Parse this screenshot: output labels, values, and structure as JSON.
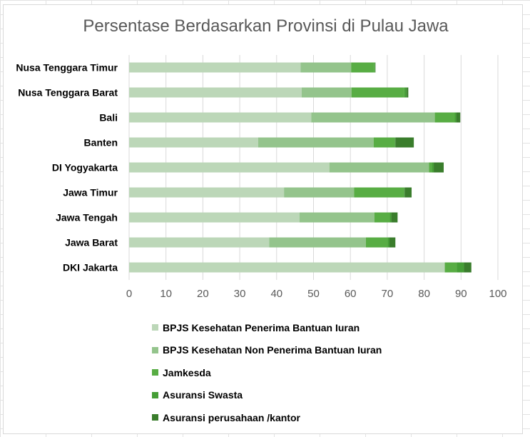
{
  "chart_data": {
    "type": "bar",
    "orientation": "horizontal",
    "stacked": true,
    "title": "Persentase Berdasarkan Provinsi di Pulau Jawa",
    "categories": [
      "Nusa Tenggara Timur",
      "Nusa Tenggara Barat",
      "Bali",
      "Banten",
      "DI Yogyakarta",
      "Jawa Timur",
      "Jawa Tengah",
      "Jawa Barat",
      "DKI Jakarta"
    ],
    "series": [
      {
        "name": "BPJS Kesehatan Penerima Bantuan Iuran",
        "color": "#bcd7b8",
        "values": [
          46.5,
          46.8,
          49.4,
          35.0,
          54.3,
          42.0,
          46.2,
          38.0,
          85.6
        ]
      },
      {
        "name": "BPJS Kesehatan Non Penerima Bantuan Iuran",
        "color": "#94c48c",
        "values": [
          13.7,
          13.5,
          33.5,
          31.3,
          27.0,
          19.0,
          20.3,
          26.2,
          0
        ]
      },
      {
        "name": "Jamkesda",
        "color": "#58ad44",
        "values": [
          6.3,
          14.3,
          5.4,
          5.7,
          0.8,
          13.5,
          4.2,
          5.9,
          3.2
        ]
      },
      {
        "name": "Asuransi Swasta",
        "color": "#459e36",
        "values": [
          0.2,
          0.6,
          0.4,
          0.2,
          0.5,
          0.2,
          0.4,
          0.5,
          2.0
        ]
      },
      {
        "name": "Asuransi perusahaan /kantor",
        "color": "#3a7d2c",
        "values": [
          0.1,
          0.5,
          1.1,
          5.0,
          2.7,
          1.9,
          1.7,
          1.6,
          2.0
        ]
      }
    ],
    "xlim": [
      0,
      100
    ],
    "xticks": [
      "0",
      "10",
      "20",
      "30",
      "40",
      "50",
      "60",
      "70",
      "80",
      "90",
      "100"
    ],
    "grid": true,
    "legend_position": "bottom"
  }
}
